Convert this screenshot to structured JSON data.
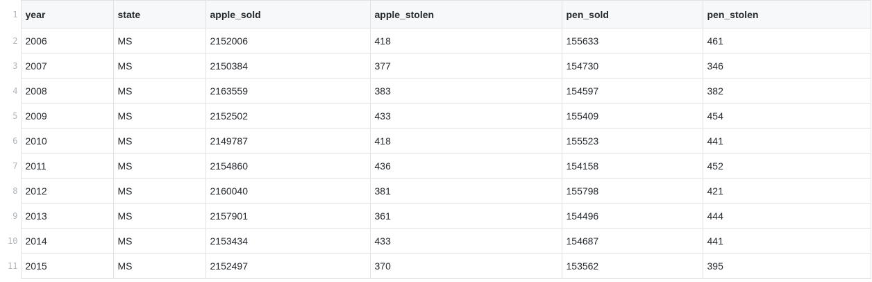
{
  "table": {
    "line_numbers": [
      "1",
      "2",
      "3",
      "4",
      "5",
      "6",
      "7",
      "8",
      "9",
      "10",
      "11"
    ],
    "headers": [
      "year",
      "state",
      "apple_sold",
      "apple_stolen",
      "pen_sold",
      "pen_stolen"
    ],
    "rows": [
      [
        "2006",
        "MS",
        "2152006",
        "418",
        "155633",
        "461"
      ],
      [
        "2007",
        "MS",
        "2150384",
        "377",
        "154730",
        "346"
      ],
      [
        "2008",
        "MS",
        "2163559",
        "383",
        "154597",
        "382"
      ],
      [
        "2009",
        "MS",
        "2152502",
        "433",
        "155409",
        "454"
      ],
      [
        "2010",
        "MS",
        "2149787",
        "418",
        "155523",
        "441"
      ],
      [
        "2011",
        "MS",
        "2154860",
        "436",
        "154158",
        "452"
      ],
      [
        "2012",
        "MS",
        "2160040",
        "381",
        "155798",
        "421"
      ],
      [
        "2013",
        "MS",
        "2157901",
        "361",
        "154496",
        "444"
      ],
      [
        "2014",
        "MS",
        "2153434",
        "433",
        "154687",
        "441"
      ],
      [
        "2015",
        "MS",
        "2152497",
        "370",
        "153562",
        "395"
      ]
    ]
  }
}
